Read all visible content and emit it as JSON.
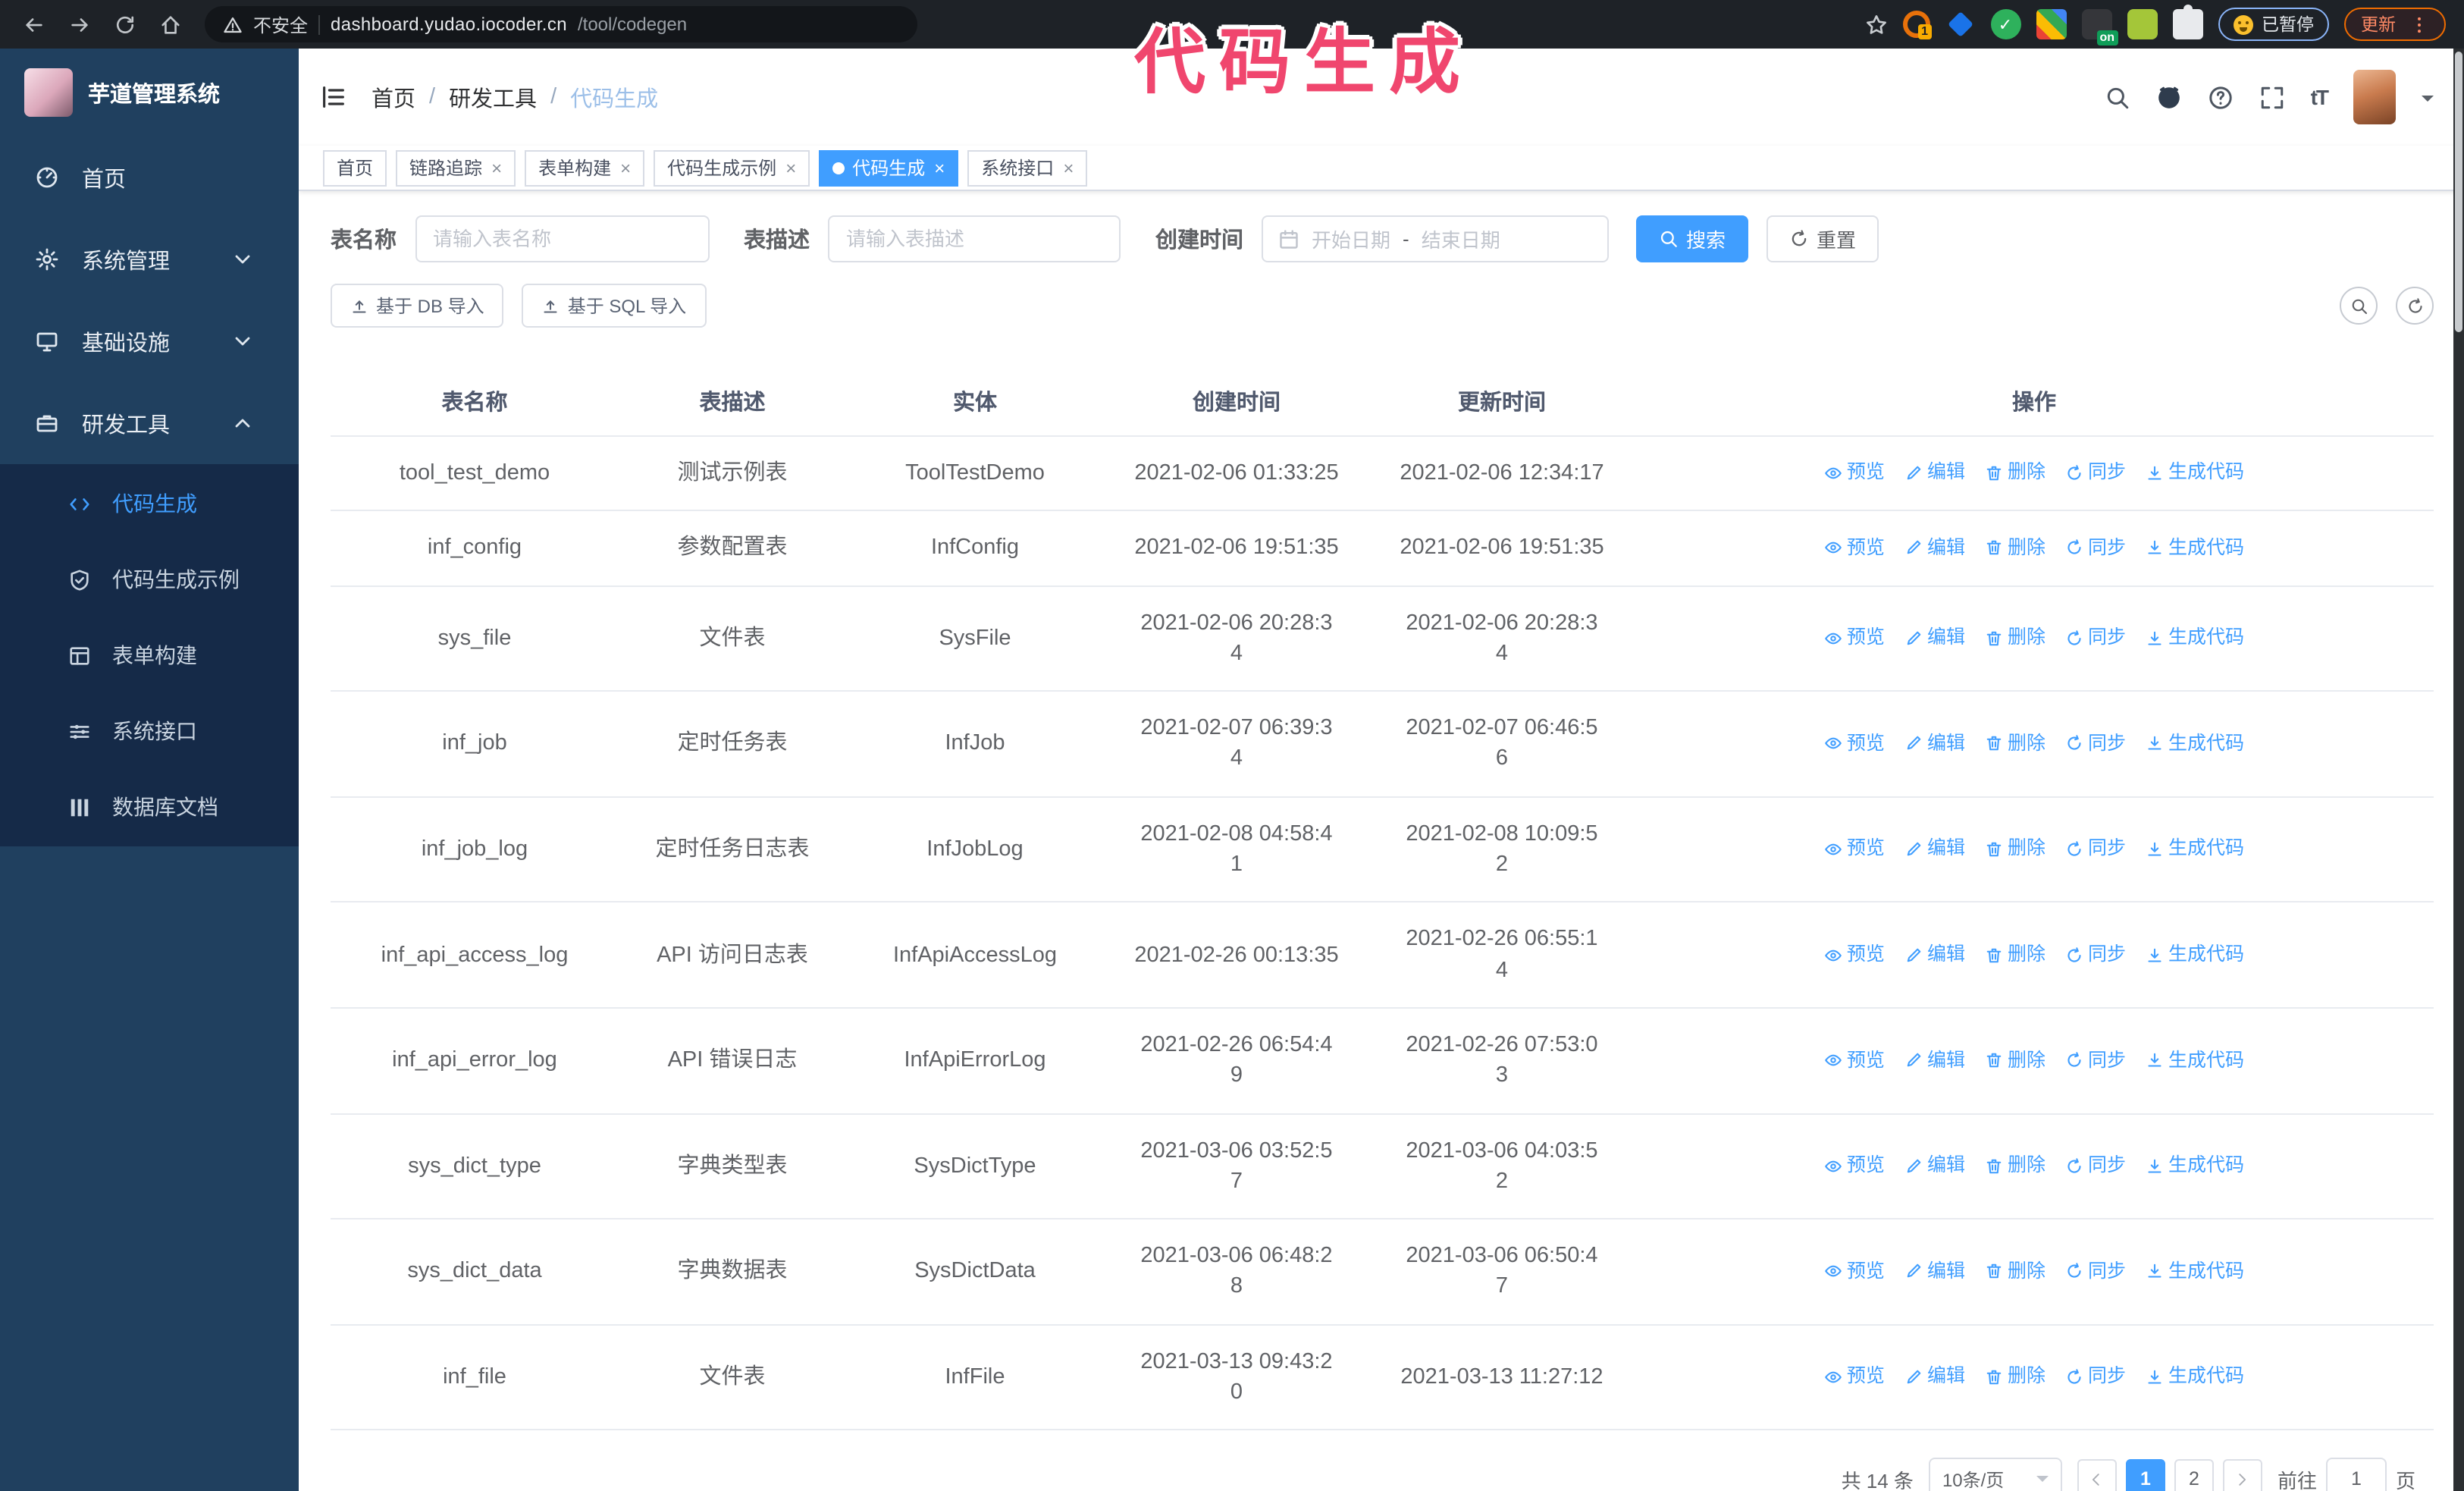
{
  "browser": {
    "nav": [
      "back-icon",
      "forward-icon",
      "reload-icon",
      "home-icon"
    ],
    "security_label": "不安全",
    "url_domain": "dashboard.yudao.iocoder.cn",
    "url_path": "/tool/codegen",
    "extensions": [
      {
        "icon": "ext-circle-orange-icon",
        "badge": "1"
      },
      {
        "icon": "ext-gem-blue-icon"
      },
      {
        "icon": "ext-check-green-icon",
        "glyph": "✓"
      },
      {
        "icon": "ext-grid-icon"
      },
      {
        "icon": "ext-onetab-icon",
        "badge": "on"
      },
      {
        "icon": "ext-android-green-icon"
      },
      {
        "icon": "ext-puzzle-icon"
      }
    ],
    "paused_label": "已暂停",
    "update_label": "更新"
  },
  "annotation": {
    "text": "代码生成",
    "color": "#f0466e"
  },
  "sidebar": {
    "app_title": "芋道管理系统",
    "items": [
      {
        "icon": "dashboard-icon",
        "label": "首页"
      },
      {
        "icon": "gear-icon",
        "label": "系统管理",
        "chevron": "down"
      },
      {
        "icon": "infrastructure-icon",
        "label": "基础设施",
        "chevron": "down"
      },
      {
        "icon": "tools-icon",
        "label": "研发工具",
        "chevron": "up",
        "active": true
      }
    ],
    "submenu": [
      {
        "icon": "code-icon",
        "label": "代码生成",
        "active": true
      },
      {
        "icon": "example-icon",
        "label": "代码生成示例"
      },
      {
        "icon": "form-icon",
        "label": "表单构建"
      },
      {
        "icon": "api-icon",
        "label": "系统接口"
      },
      {
        "icon": "database-icon",
        "label": "数据库文档"
      }
    ]
  },
  "header": {
    "breadcrumb": [
      "首页",
      "研发工具",
      "代码生成"
    ],
    "breadcrumb_separator": "/"
  },
  "tags": [
    {
      "label": "首页",
      "closable": false
    },
    {
      "label": "链路追踪",
      "closable": true
    },
    {
      "label": "表单构建",
      "closable": true
    },
    {
      "label": "代码生成示例",
      "closable": true
    },
    {
      "label": "代码生成",
      "closable": true,
      "active": true
    },
    {
      "label": "系统接口",
      "closable": true
    }
  ],
  "filters": {
    "name_label": "表名称",
    "name_placeholder": "请输入表名称",
    "desc_label": "表描述",
    "desc_placeholder": "请输入表描述",
    "time_label": "创建时间",
    "start_placeholder": "开始日期",
    "range_separator": "-",
    "end_placeholder": "结束日期",
    "search_label": "搜索",
    "reset_label": "重置"
  },
  "toolbar": {
    "db_import_label": "基于 DB 导入",
    "sql_import_label": "基于 SQL 导入"
  },
  "table": {
    "columns": [
      "表名称",
      "表描述",
      "实体",
      "创建时间",
      "更新时间",
      "操作"
    ],
    "actions": [
      {
        "icon": "eye-icon",
        "label": "预览"
      },
      {
        "icon": "edit-icon",
        "label": "编辑"
      },
      {
        "icon": "delete-icon",
        "label": "删除"
      },
      {
        "icon": "sync-icon",
        "label": "同步"
      },
      {
        "icon": "download-icon",
        "label": "生成代码"
      }
    ],
    "rows": [
      {
        "name": "tool_test_demo",
        "desc": "测试示例表",
        "entity": "ToolTestDemo",
        "created": "2021-02-06 01:33:25",
        "updated": "2021-02-06 12:34:17"
      },
      {
        "name": "inf_config",
        "desc": "参数配置表",
        "entity": "InfConfig",
        "created": "2021-02-06 19:51:35",
        "updated": "2021-02-06 19:51:35"
      },
      {
        "name": "sys_file",
        "desc": "文件表",
        "entity": "SysFile",
        "created": "2021-02-06 20:28:3\n4",
        "updated": "2021-02-06 20:28:3\n4"
      },
      {
        "name": "inf_job",
        "desc": "定时任务表",
        "entity": "InfJob",
        "created": "2021-02-07 06:39:3\n4",
        "updated": "2021-02-07 06:46:5\n6"
      },
      {
        "name": "inf_job_log",
        "desc": "定时任务日志表",
        "entity": "InfJobLog",
        "created": "2021-02-08 04:58:4\n1",
        "updated": "2021-02-08 10:09:5\n2"
      },
      {
        "name": "inf_api_access_log",
        "desc": "API 访问日志表",
        "entity": "InfApiAccessLog",
        "created": "2021-02-26 00:13:35",
        "updated": "2021-02-26 06:55:1\n4"
      },
      {
        "name": "inf_api_error_log",
        "desc": "API 错误日志",
        "entity": "InfApiErrorLog",
        "created": "2021-02-26 06:54:4\n9",
        "updated": "2021-02-26 07:53:0\n3"
      },
      {
        "name": "sys_dict_type",
        "desc": "字典类型表",
        "entity": "SysDictType",
        "created": "2021-03-06 03:52:5\n7",
        "updated": "2021-03-06 04:03:5\n2"
      },
      {
        "name": "sys_dict_data",
        "desc": "字典数据表",
        "entity": "SysDictData",
        "created": "2021-03-06 06:48:2\n8",
        "updated": "2021-03-06 06:50:4\n7"
      },
      {
        "name": "inf_file",
        "desc": "文件表",
        "entity": "InfFile",
        "created": "2021-03-13 09:43:2\n0",
        "updated": "2021-03-13 11:27:12"
      }
    ]
  },
  "pagination": {
    "total": "共 14 条",
    "page_size": "10条/页",
    "pages": [
      "1",
      "2"
    ],
    "active_page": "1",
    "goto_label": "前往",
    "goto_value": "1",
    "page_unit": "页"
  },
  "colors": {
    "accent": "#409eff",
    "sidebar_bg": "#20405f",
    "submenu_bg": "#152a48",
    "annotation": "#f0466e",
    "browser_bar_bg": "#1e2227"
  }
}
